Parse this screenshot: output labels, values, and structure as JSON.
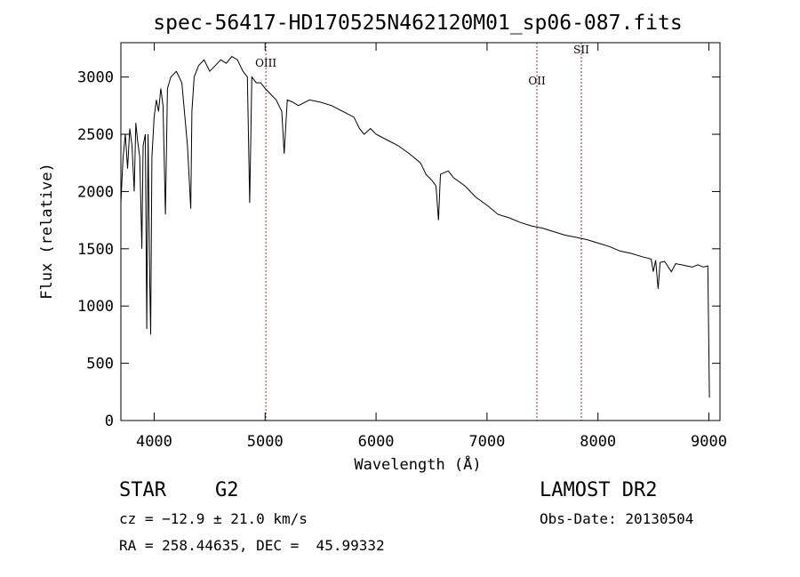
{
  "chart_data": {
    "type": "line",
    "title": "spec-56417-HD170525N462120M01_sp06-087.fits",
    "xlabel": "Wavelength (Å)",
    "ylabel": "Flux (relative)",
    "xlim": [
      3700,
      9100
    ],
    "ylim": [
      0,
      3300
    ],
    "xticks": [
      4000,
      5000,
      6000,
      7000,
      8000,
      9000
    ],
    "yticks": [
      0,
      500,
      1000,
      1500,
      2000,
      2500,
      3000
    ],
    "grid": false,
    "line_color": "#000000",
    "series": [
      {
        "x": [
          3700,
          3710,
          3720,
          3740,
          3760,
          3780,
          3800,
          3820,
          3835,
          3850,
          3870,
          3889,
          3900,
          3920,
          3933,
          3945,
          3960,
          3968,
          3980,
          4000,
          4020,
          4040,
          4060,
          4080,
          4101,
          4120,
          4150,
          4200,
          4250,
          4300,
          4330,
          4340,
          4360,
          4400,
          4450,
          4500,
          4550,
          4600,
          4650,
          4700,
          4750,
          4800,
          4840,
          4861,
          4880,
          4920,
          4960,
          5000,
          5050,
          5100,
          5150,
          5172,
          5200,
          5250,
          5300,
          5400,
          5500,
          5600,
          5700,
          5800,
          5850,
          5893,
          5950,
          6000,
          6100,
          6200,
          6300,
          6400,
          6450,
          6500,
          6540,
          6563,
          6580,
          6650,
          6700,
          6800,
          6900,
          7000,
          7100,
          7200,
          7300,
          7400,
          7500,
          7600,
          7700,
          7800,
          7900,
          8000,
          8100,
          8200,
          8300,
          8400,
          8480,
          8498,
          8520,
          8542,
          8560,
          8600,
          8662,
          8700,
          8750,
          8800,
          8850,
          8900,
          8950,
          8990,
          9000,
          9005
        ],
        "y": [
          1900,
          2100,
          2300,
          2500,
          2200,
          2550,
          2400,
          2000,
          2600,
          2450,
          2300,
          1500,
          2400,
          2500,
          800,
          2500,
          1200,
          750,
          2300,
          2650,
          2800,
          2700,
          2900,
          2750,
          1800,
          2900,
          3000,
          3050,
          2950,
          2400,
          1850,
          2700,
          3000,
          3100,
          3150,
          3050,
          3100,
          3150,
          3120,
          3180,
          3150,
          3050,
          3000,
          1900,
          3000,
          2950,
          2950,
          2900,
          2850,
          2800,
          2700,
          2330,
          2800,
          2780,
          2750,
          2800,
          2780,
          2750,
          2700,
          2650,
          2550,
          2500,
          2550,
          2500,
          2450,
          2400,
          2330,
          2250,
          2150,
          2100,
          2050,
          1750,
          2150,
          2180,
          2120,
          2050,
          1950,
          1880,
          1800,
          1770,
          1730,
          1700,
          1680,
          1650,
          1620,
          1600,
          1580,
          1550,
          1520,
          1480,
          1460,
          1430,
          1410,
          1300,
          1400,
          1150,
          1380,
          1390,
          1300,
          1370,
          1360,
          1350,
          1340,
          1360,
          1340,
          1350,
          600,
          200
        ]
      }
    ],
    "annotations": [
      {
        "label": "OIII",
        "x": 5007
      },
      {
        "label": "OII",
        "x": 7450
      },
      {
        "label": "SII",
        "x": 7850
      }
    ]
  },
  "info": {
    "object_class": "STAR",
    "subclass": "G2",
    "survey": "LAMOST DR2",
    "redshift": "cz = −12.9 ± 21.0 km/s",
    "obs_date": "Obs-Date: 20130504",
    "coords": "RA = 258.44635, DEC =  45.99332"
  }
}
